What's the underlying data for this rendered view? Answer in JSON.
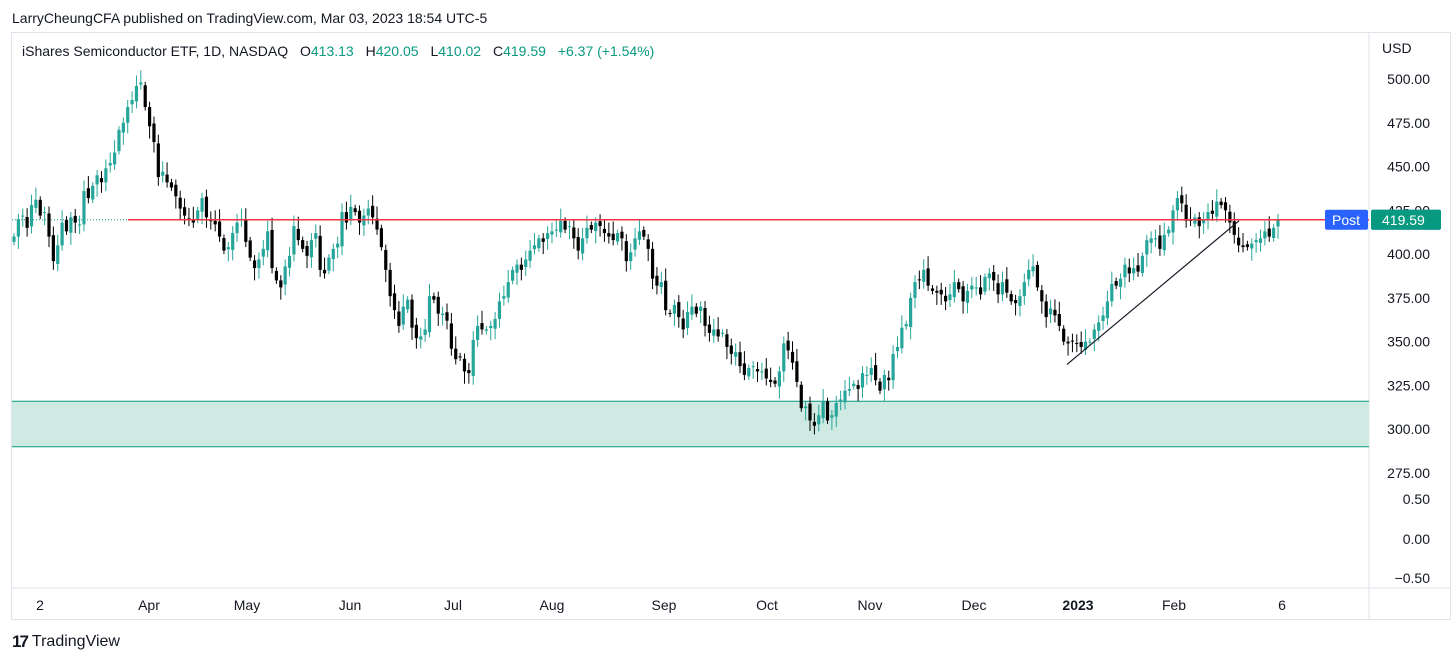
{
  "header": {
    "publisher_line": "LarryCheungCFA published on TradingView.com, Mar 03, 2023 18:54 UTC-5"
  },
  "legend": {
    "symbol": "iShares Semiconductor ETF, 1D, NASDAQ",
    "open_label": "O",
    "open": "413.13",
    "high_label": "H",
    "high": "420.05",
    "low_label": "L",
    "low": "410.02",
    "close_label": "C",
    "close": "419.59",
    "change": "+6.37 (+1.54%)"
  },
  "footer": {
    "brand": "TradingView",
    "logo_glyph": "17"
  },
  "colors": {
    "up": "#26a69a",
    "down": "#000000",
    "resistance": "#f23645",
    "zone_fill": "#cfeae3",
    "zone_border": "#089981",
    "post_badge": "#2962ff",
    "last_badge": "#089981"
  },
  "chart_data": {
    "type": "candlestick",
    "currency_label": "USD",
    "y_ticks": [
      "500.00",
      "475.00",
      "450.00",
      "425.00",
      "400.00",
      "375.00",
      "350.00",
      "325.00",
      "300.00",
      "275.00",
      "0.50",
      "0.00",
      "−0.50"
    ],
    "x_ticks": [
      "2",
      "Apr",
      "May",
      "Jun",
      "Jul",
      "Aug",
      "Sep",
      "Oct",
      "Nov",
      "Dec",
      "2023",
      "Feb",
      "6"
    ],
    "price_range": [
      275,
      505
    ],
    "series": [
      {
        "type": "close",
        "values": [
          410,
          420,
          422,
          415,
          428,
          431,
          422,
          424,
          410,
          396,
          405,
          418,
          413,
          421,
          418,
          417,
          436,
          432,
          439,
          445,
          441,
          449,
          452,
          458,
          471,
          475,
          484,
          488,
          496,
          498,
          484,
          473,
          464,
          444,
          447,
          441,
          438,
          433,
          426,
          422,
          420,
          418,
          425,
          432,
          421,
          419,
          417,
          410,
          402,
          404,
          412,
          418,
          420,
          407,
          398,
          392,
          397,
          403,
          413,
          392,
          385,
          381,
          393,
          399,
          416,
          408,
          403,
          399,
          408,
          412,
          391,
          389,
          398,
          403,
          406,
          424,
          418,
          427,
          424,
          418,
          422,
          426,
          421,
          414,
          404,
          391,
          376,
          368,
          359,
          370,
          374,
          358,
          352,
          353,
          357,
          376,
          374,
          366,
          366,
          362,
          346,
          340,
          341,
          333,
          332,
          351,
          359,
          357,
          357,
          359,
          363,
          373,
          376,
          384,
          391,
          394,
          391,
          397,
          402,
          405,
          409,
          407,
          412,
          413,
          414,
          419,
          414,
          416,
          409,
          402,
          409,
          415,
          414,
          418,
          416,
          412,
          410,
          408,
          412,
          409,
          396,
          401,
          409,
          413,
          410,
          403,
          386,
          382,
          384,
          368,
          366,
          371,
          364,
          357,
          367,
          370,
          366,
          370,
          359,
          355,
          357,
          353,
          355,
          347,
          343,
          344,
          336,
          331,
          335,
          336,
          333,
          333,
          329,
          327,
          326,
          333,
          349,
          345,
          338,
          327,
          312,
          313,
          305,
          302,
          308,
          316,
          305,
          308,
          315,
          317,
          322,
          323,
          326,
          323,
          332,
          331,
          335,
          328,
          322,
          331,
          328,
          343,
          347,
          358,
          360,
          375,
          384,
          385,
          391,
          382,
          379,
          378,
          377,
          373,
          377,
          384,
          380,
          373,
          379,
          382,
          381,
          377,
          387,
          389,
          385,
          377,
          384,
          378,
          373,
          372,
          376,
          384,
          391,
          393,
          381,
          373,
          364,
          369,
          365,
          359,
          350,
          349,
          350,
          349,
          347,
          350,
          350,
          357,
          361,
          365,
          373,
          383,
          382,
          386,
          394,
          389,
          392,
          390,
          399,
          408,
          409,
          409,
          403,
          411,
          414,
          425,
          432,
          429,
          419,
          419,
          421,
          416,
          420,
          424,
          423,
          430,
          428,
          425,
          418,
          411,
          405,
          404,
          404,
          406,
          408,
          409,
          413,
          410,
          415,
          420
        ]
      }
    ],
    "overlays": {
      "resistance_line": {
        "value": 419.62
      },
      "support_zone": {
        "top": 316,
        "bottom": 290
      },
      "trend_line": {
        "from": 337,
        "to": 419
      },
      "post_label": "Post",
      "post_value": "419.62",
      "last_value": "419.59"
    }
  }
}
